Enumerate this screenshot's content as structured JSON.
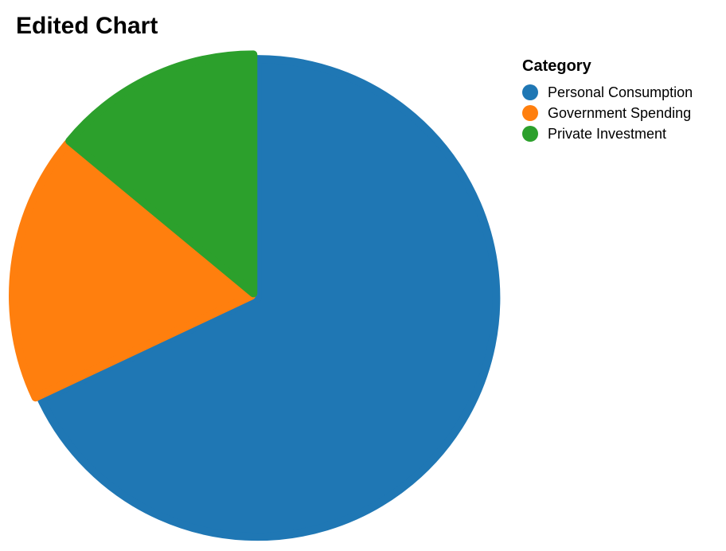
{
  "title": "Edited Chart",
  "chart_data": {
    "type": "pie",
    "categories": [
      "Personal Consumption",
      "Government Spending",
      "Private Investment"
    ],
    "values": [
      68,
      18,
      14
    ],
    "colors": [
      "#1f77b4",
      "#ff7f0e",
      "#2ca02c"
    ],
    "start_angle_deg": 0,
    "direction": "clockwise",
    "legend_title": "Category",
    "legend_placement": "top-right"
  }
}
